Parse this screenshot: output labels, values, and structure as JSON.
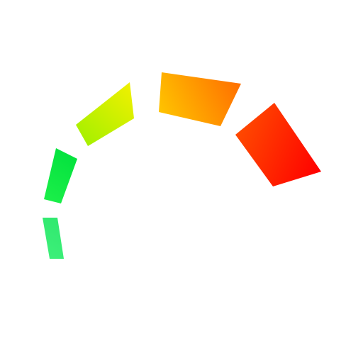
{
  "gauge": {
    "kind": "segmented-arc-icon",
    "segments": [
      {
        "name": "segment-1",
        "color_start": "#3ef07a",
        "color_end": "#2fe86e"
      },
      {
        "name": "segment-2",
        "color_start": "#1df04a",
        "color_end": "#00e03c"
      },
      {
        "name": "segment-3",
        "color_start": "#9ef000",
        "color_end": "#f4f000"
      },
      {
        "name": "segment-4",
        "color_start": "#ffc400",
        "color_end": "#ff6a00"
      },
      {
        "name": "segment-5",
        "color_start": "#ff4a00",
        "color_end": "#ff0000"
      }
    ]
  }
}
